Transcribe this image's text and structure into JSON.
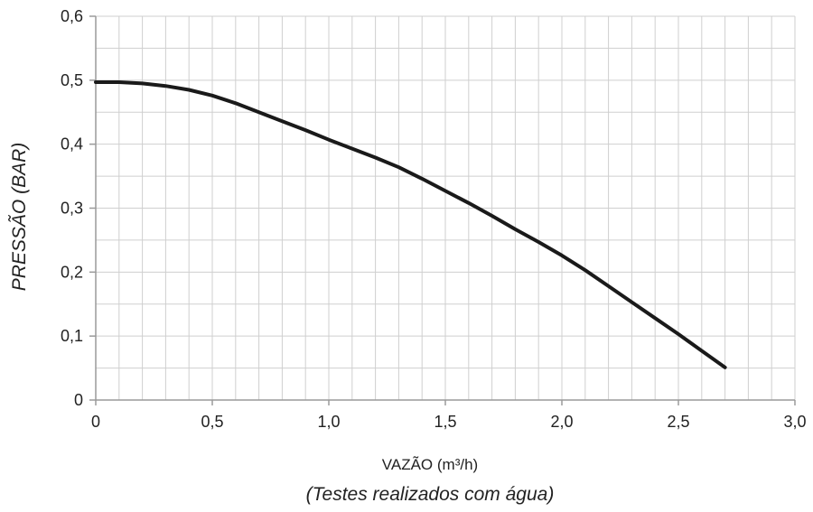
{
  "chart_data": {
    "type": "line",
    "xlabel": "VAZÃO (m³/h)",
    "ylabel": "PRESSÃO (BAR)",
    "note": "(Testes realizados com água)",
    "xlim": [
      0,
      3.0
    ],
    "ylim": [
      0,
      0.6
    ],
    "x_ticks": [
      0,
      0.5,
      1.0,
      1.5,
      2.0,
      2.5,
      3.0
    ],
    "x_tick_labels": [
      "0",
      "0,5",
      "1,0",
      "1,5",
      "2,0",
      "2,5",
      "3,0"
    ],
    "y_ticks": [
      0,
      0.1,
      0.2,
      0.3,
      0.4,
      0.5,
      0.6
    ],
    "y_tick_labels": [
      "0",
      "0,1",
      "0,2",
      "0,3",
      "0,4",
      "0,5",
      "0,6"
    ],
    "grid": true,
    "minor_grid_step_x": 0.1,
    "minor_grid_step_y": 0.05,
    "series": [
      {
        "x": [
          0,
          0.1,
          0.2,
          0.3,
          0.4,
          0.5,
          0.6,
          0.7,
          0.8,
          0.9,
          1.0,
          1.1,
          1.2,
          1.3,
          1.4,
          1.5,
          1.6,
          1.7,
          1.8,
          1.9,
          2.0,
          2.1,
          2.2,
          2.3,
          2.4,
          2.5,
          2.6,
          2.7
        ],
        "y": [
          0.497,
          0.497,
          0.495,
          0.491,
          0.485,
          0.476,
          0.464,
          0.45,
          0.436,
          0.422,
          0.407,
          0.393,
          0.379,
          0.364,
          0.346,
          0.327,
          0.308,
          0.288,
          0.267,
          0.247,
          0.226,
          0.203,
          0.178,
          0.153,
          0.128,
          0.103,
          0.077,
          0.051
        ],
        "color": "#1a1a1a"
      }
    ]
  }
}
